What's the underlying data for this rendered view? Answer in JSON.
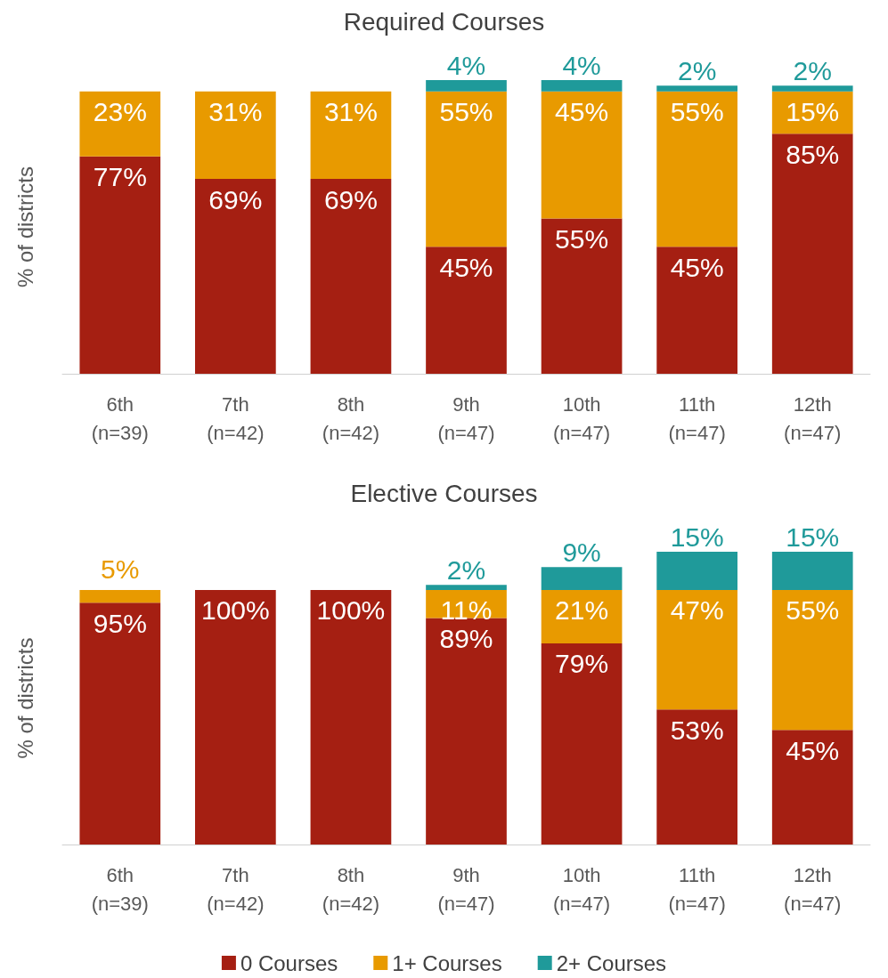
{
  "chart_data": [
    {
      "type": "bar",
      "title": "Required Courses",
      "ylabel": "% of districts",
      "stacked": true,
      "legend": false,
      "grid": false,
      "tick_labels": "x",
      "categories": [
        "6th\n(n=39)",
        "7th\n(n=42)",
        "8th\n(n=42)",
        "9th\n(n=47)",
        "10th\n(n=47)",
        "11th\n(n=47)",
        "12th\n(n=47)"
      ],
      "series": [
        {
          "color": "#a51f12",
          "values": [
            77,
            69,
            69,
            45,
            55,
            45,
            85
          ],
          "value_labels": [
            "77%",
            "69%",
            "69%",
            "45%",
            "55%",
            "45%",
            "85%"
          ]
        },
        {
          "color": "#e89a00",
          "values": [
            23,
            31,
            31,
            55,
            45,
            55,
            15
          ],
          "value_labels": [
            "23%",
            "31%",
            "31%",
            "55%",
            "45%",
            "55%",
            "15%"
          ]
        },
        {
          "color": "#1f9a9a",
          "values": [
            null,
            null,
            null,
            4,
            4,
            2,
            2
          ],
          "value_labels": [
            null,
            null,
            null,
            "4%",
            "4%",
            "2%",
            "2%"
          ]
        }
      ]
    },
    {
      "type": "bar",
      "title": "Elective Courses",
      "ylabel": "% of districts",
      "stacked": true,
      "legend": "bottom",
      "grid": false,
      "tick_labels": "x",
      "categories": [
        "6th\n(n=39)",
        "7th\n(n=42)",
        "8th\n(n=42)",
        "9th\n(n=47)",
        "10th\n(n=47)",
        "11th\n(n=47)",
        "12th\n(n=47)"
      ],
      "series": [
        {
          "name": "0 Courses",
          "color": "#a51f12",
          "values": [
            95,
            100,
            100,
            89,
            79,
            53,
            45
          ],
          "value_labels": [
            "95%",
            "100%",
            "100%",
            "89%",
            "79%",
            "53%",
            "45%"
          ]
        },
        {
          "name": "1+ Courses",
          "color": "#e89a00",
          "values": [
            5,
            null,
            null,
            11,
            21,
            47,
            55
          ],
          "value_labels": [
            "5%",
            null,
            null,
            "11%",
            "21%",
            "47%",
            "55%"
          ]
        },
        {
          "name": "2+ Courses",
          "color": "#1f9a9a",
          "values": [
            null,
            null,
            null,
            2,
            9,
            15,
            15
          ],
          "value_labels": [
            null,
            null,
            null,
            "2%",
            "9%",
            "15%",
            "15%"
          ]
        }
      ]
    }
  ]
}
